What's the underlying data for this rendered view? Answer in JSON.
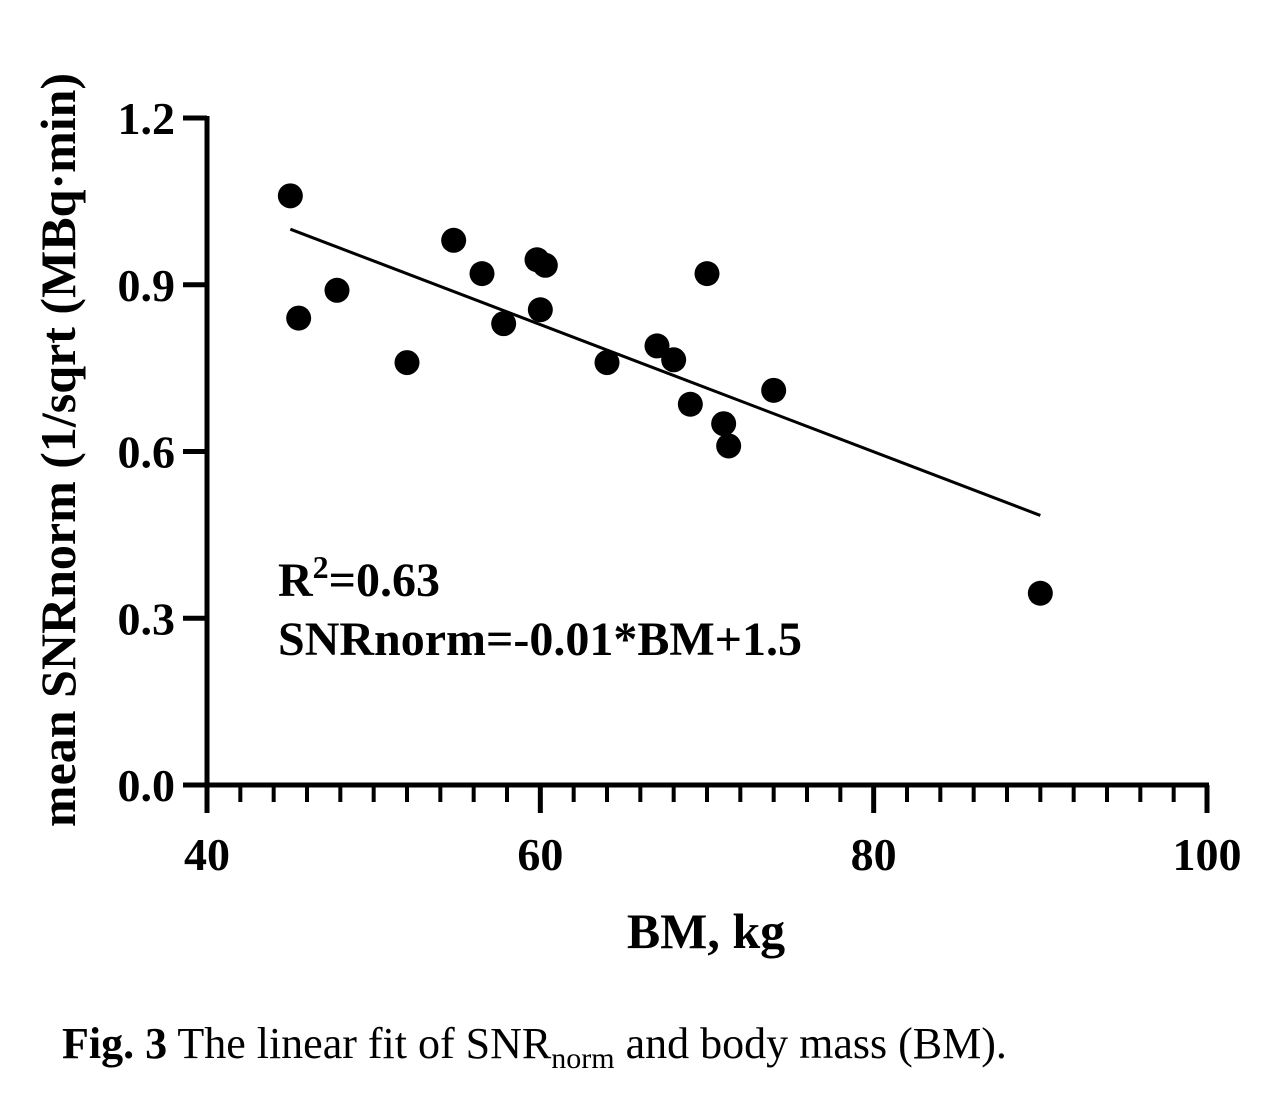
{
  "chart_data": {
    "type": "scatter",
    "xlabel": "BM, kg",
    "ylabel": "mean SNRnorm (1/sqrt (MBq·min)",
    "xlim": [
      40,
      100
    ],
    "ylim": [
      0.0,
      1.2
    ],
    "x_ticks": [
      "40",
      "60",
      "80",
      "100"
    ],
    "y_ticks": [
      "0.0",
      "0.3",
      "0.6",
      "0.9",
      "1.2"
    ],
    "grid": false,
    "points": [
      {
        "x": 45.0,
        "y": 1.06
      },
      {
        "x": 45.5,
        "y": 0.84
      },
      {
        "x": 47.8,
        "y": 0.89
      },
      {
        "x": 52.0,
        "y": 0.76
      },
      {
        "x": 54.8,
        "y": 0.98
      },
      {
        "x": 56.5,
        "y": 0.92
      },
      {
        "x": 57.8,
        "y": 0.83
      },
      {
        "x": 59.8,
        "y": 0.945
      },
      {
        "x": 60.3,
        "y": 0.935
      },
      {
        "x": 60.0,
        "y": 0.855
      },
      {
        "x": 64.0,
        "y": 0.76
      },
      {
        "x": 67.0,
        "y": 0.79
      },
      {
        "x": 68.0,
        "y": 0.765
      },
      {
        "x": 69.0,
        "y": 0.685
      },
      {
        "x": 70.0,
        "y": 0.92
      },
      {
        "x": 71.0,
        "y": 0.65
      },
      {
        "x": 71.3,
        "y": 0.61
      },
      {
        "x": 74.0,
        "y": 0.71
      },
      {
        "x": 90.0,
        "y": 0.345
      }
    ],
    "fit_line": {
      "x": [
        45,
        90
      ],
      "y": [
        1.0,
        0.485
      ]
    },
    "annotation": {
      "r2_prefix": "R",
      "r2_sup": "2",
      "r2_value": "=0.63",
      "equation": "SNRnorm=-0.01*BM+1.5"
    }
  },
  "caption": {
    "label": "Fig. 3",
    "text_before": " The linear fit of SNR",
    "subscript": "norm",
    "text_after": " and body mass (BM)."
  }
}
